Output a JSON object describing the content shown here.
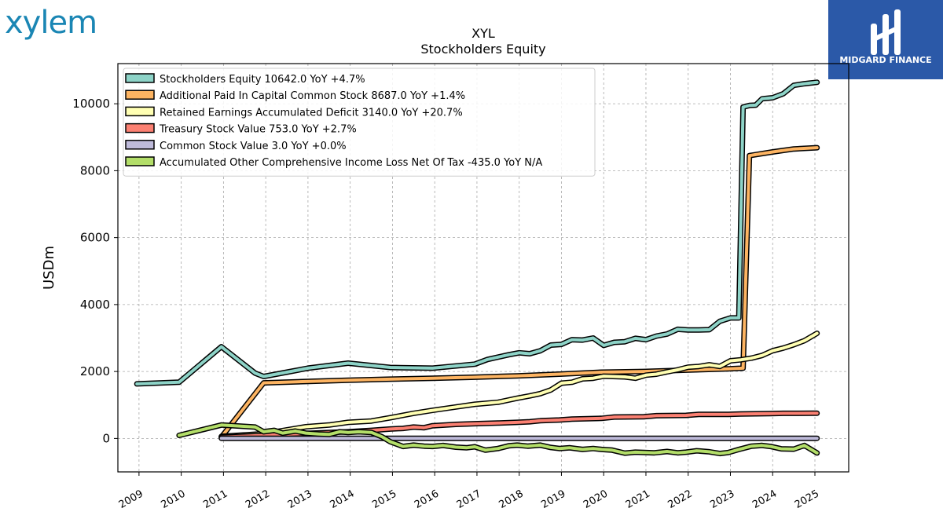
{
  "logos": {
    "left_text": "xylem",
    "right_text": "MIDGARD FINANCE"
  },
  "chart_data": {
    "type": "line",
    "title": "XYL",
    "subtitle": "Stockholders  Equity",
    "xlabel": "",
    "ylabel": "USDm",
    "xlim": [
      2008.5,
      2025.8
    ],
    "ylim": [
      -1000,
      11200
    ],
    "yticks": [
      0,
      2000,
      4000,
      6000,
      8000,
      10000
    ],
    "xticks": [
      "2009",
      "2010",
      "2011",
      "2012",
      "2013",
      "2014",
      "2015",
      "2016",
      "2017",
      "2018",
      "2019",
      "2020",
      "2021",
      "2022",
      "2023",
      "2024",
      "2025"
    ],
    "grid": true,
    "legend_position": "top-left",
    "series": [
      {
        "name": "Stockholders Equity  10642.0 YoY +4.7%",
        "color": "#8dd3c7",
        "x": [
          2008.95,
          2009.95,
          2010.95,
          2011.75,
          2011.95,
          2012.5,
          2013.0,
          2013.95,
          2014.95,
          2015.95,
          2016.95,
          2017.25,
          2017.75,
          2018.0,
          2018.25,
          2018.5,
          2018.75,
          2019.0,
          2019.25,
          2019.5,
          2019.75,
          2020.0,
          2020.25,
          2020.5,
          2020.75,
          2021.0,
          2021.25,
          2021.5,
          2021.75,
          2022.0,
          2022.25,
          2022.5,
          2022.75,
          2023.0,
          2023.2,
          2023.3,
          2023.45,
          2023.6,
          2023.75,
          2024.0,
          2024.25,
          2024.5,
          2024.75,
          2025.05
        ],
        "y": [
          1630,
          1680,
          2740,
          1950,
          1850,
          1980,
          2100,
          2250,
          2120,
          2100,
          2220,
          2360,
          2500,
          2560,
          2530,
          2620,
          2790,
          2810,
          2950,
          2940,
          3000,
          2780,
          2870,
          2890,
          2990,
          2950,
          3060,
          3120,
          3260,
          3240,
          3240,
          3250,
          3500,
          3600,
          3600,
          9900,
          9950,
          9960,
          10150,
          10180,
          10300,
          10550,
          10600,
          10642
        ]
      },
      {
        "name": "Additional Paid In Capital Common Stock  8687.0 YoY +1.4%",
        "color": "#fdb462",
        "x": [
          2010.95,
          2011.95,
          2012.95,
          2013.95,
          2014.95,
          2015.95,
          2016.95,
          2017.95,
          2018.95,
          2019.95,
          2020.95,
          2021.95,
          2022.95,
          2023.3,
          2023.45,
          2023.6,
          2024.0,
          2024.5,
          2025.05
        ],
        "y": [
          40,
          1660,
          1700,
          1740,
          1770,
          1800,
          1830,
          1870,
          1920,
          1980,
          2000,
          2040,
          2080,
          2100,
          8450,
          8480,
          8560,
          8650,
          8687
        ]
      },
      {
        "name": "Retained Earnings Accumulated Deficit  3140.0 YoY +20.7%",
        "color": "#ffffb3",
        "x": [
          2010.95,
          2011.95,
          2012.95,
          2013.5,
          2013.95,
          2014.5,
          2014.95,
          2015.5,
          2015.95,
          2016.5,
          2016.95,
          2017.5,
          2017.95,
          2018.25,
          2018.5,
          2018.75,
          2019.0,
          2019.25,
          2019.5,
          2019.75,
          2020.0,
          2020.5,
          2020.75,
          2021.0,
          2021.25,
          2021.5,
          2021.75,
          2022.0,
          2022.25,
          2022.5,
          2022.75,
          2023.0,
          2023.25,
          2023.5,
          2023.75,
          2024.0,
          2024.25,
          2024.5,
          2024.75,
          2025.05
        ],
        "y": [
          60,
          140,
          350,
          400,
          480,
          520,
          620,
          750,
          840,
          940,
          1020,
          1080,
          1200,
          1270,
          1340,
          1450,
          1650,
          1680,
          1780,
          1800,
          1860,
          1840,
          1800,
          1890,
          1920,
          1990,
          2050,
          2130,
          2150,
          2200,
          2150,
          2320,
          2350,
          2400,
          2480,
          2620,
          2700,
          2800,
          2920,
          3140
        ]
      },
      {
        "name": "Treasury Stock Value  753.0 YoY +2.7%",
        "color": "#fb8072",
        "x": [
          2010.95,
          2011.95,
          2012.95,
          2013.95,
          2014.5,
          2014.95,
          2015.25,
          2015.5,
          2015.75,
          2015.95,
          2016.5,
          2016.95,
          2017.5,
          2017.95,
          2018.25,
          2018.5,
          2018.95,
          2019.25,
          2019.95,
          2020.25,
          2020.95,
          2021.25,
          2021.95,
          2022.25,
          2022.95,
          2023.25,
          2023.95,
          2024.25,
          2024.95,
          2025.05
        ],
        "y": [
          40,
          90,
          150,
          200,
          240,
          280,
          300,
          340,
          320,
          380,
          420,
          440,
          460,
          480,
          500,
          530,
          550,
          580,
          600,
          640,
          650,
          680,
          690,
          720,
          720,
          730,
          740,
          750,
          753,
          753
        ]
      },
      {
        "name": "Common Stock Value  3.0 YoY +0.0%",
        "color": "#bebada",
        "x": [
          2010.95,
          2025.05
        ],
        "y": [
          3,
          3
        ]
      },
      {
        "name": "Accumulated Other Comprehensive Income Loss Net Of Tax  -435.0 YoY N/A",
        "color": "#b3de69",
        "x": [
          2009.95,
          2010.95,
          2011.75,
          2011.95,
          2012.2,
          2012.4,
          2012.7,
          2012.95,
          2013.25,
          2013.5,
          2013.75,
          2013.95,
          2014.2,
          2014.5,
          2014.75,
          2014.95,
          2015.25,
          2015.5,
          2015.75,
          2015.95,
          2016.2,
          2016.5,
          2016.75,
          2016.95,
          2017.2,
          2017.5,
          2017.75,
          2017.95,
          2018.2,
          2018.5,
          2018.75,
          2018.95,
          2019.2,
          2019.5,
          2019.75,
          2019.95,
          2020.2,
          2020.5,
          2020.75,
          2020.95,
          2021.2,
          2021.5,
          2021.75,
          2021.95,
          2022.2,
          2022.5,
          2022.75,
          2022.95,
          2023.2,
          2023.5,
          2023.75,
          2023.95,
          2024.2,
          2024.5,
          2024.75,
          2025.05
        ],
        "y": [
          90,
          400,
          340,
          200,
          240,
          160,
          220,
          160,
          130,
          120,
          200,
          180,
          200,
          180,
          50,
          -100,
          -240,
          -200,
          -230,
          -240,
          -210,
          -260,
          -280,
          -250,
          -350,
          -300,
          -220,
          -200,
          -230,
          -200,
          -270,
          -300,
          -280,
          -330,
          -300,
          -330,
          -350,
          -440,
          -410,
          -420,
          -430,
          -390,
          -430,
          -410,
          -370,
          -400,
          -450,
          -420,
          -330,
          -230,
          -210,
          -240,
          -310,
          -320,
          -210,
          -435
        ]
      }
    ]
  }
}
